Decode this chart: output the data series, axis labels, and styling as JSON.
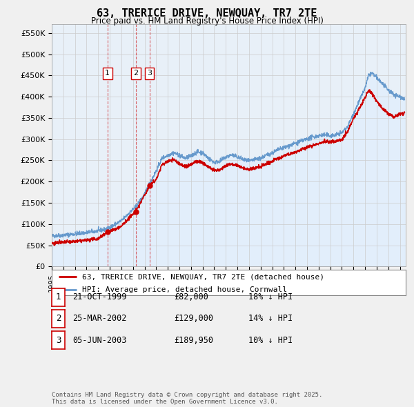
{
  "title": "63, TRERICE DRIVE, NEWQUAY, TR7 2TE",
  "subtitle": "Price paid vs. HM Land Registry's House Price Index (HPI)",
  "ylabel_ticks": [
    "£0",
    "£50K",
    "£100K",
    "£150K",
    "£200K",
    "£250K",
    "£300K",
    "£350K",
    "£400K",
    "£450K",
    "£500K",
    "£550K"
  ],
  "ytick_vals": [
    0,
    50000,
    100000,
    150000,
    200000,
    250000,
    300000,
    350000,
    400000,
    450000,
    500000,
    550000
  ],
  "ylim": [
    0,
    570000
  ],
  "xlim_start": 1995.0,
  "xlim_end": 2025.5,
  "sale_color": "#cc0000",
  "hpi_color": "#6699cc",
  "hpi_fill_color": "#ddeeff",
  "sale_points": [
    {
      "year": 1999.8,
      "price": 82000,
      "label": "1"
    },
    {
      "year": 2002.23,
      "price": 129000,
      "label": "2"
    },
    {
      "year": 2003.42,
      "price": 189950,
      "label": "3"
    }
  ],
  "vline_color": "#cc0000",
  "legend_entries": [
    "63, TRERICE DRIVE, NEWQUAY, TR7 2TE (detached house)",
    "HPI: Average price, detached house, Cornwall"
  ],
  "table_rows": [
    {
      "num": "1",
      "date": "21-OCT-1999",
      "price": "£82,000",
      "hpi": "18% ↓ HPI"
    },
    {
      "num": "2",
      "date": "25-MAR-2002",
      "price": "£129,000",
      "hpi": "14% ↓ HPI"
    },
    {
      "num": "3",
      "date": "05-JUN-2003",
      "price": "£189,950",
      "hpi": "10% ↓ HPI"
    }
  ],
  "footer": "Contains HM Land Registry data © Crown copyright and database right 2025.\nThis data is licensed under the Open Government Licence v3.0.",
  "bg_color": "#f0f0f0",
  "plot_bg_color": "#e8f0f8",
  "grid_color": "#cccccc"
}
